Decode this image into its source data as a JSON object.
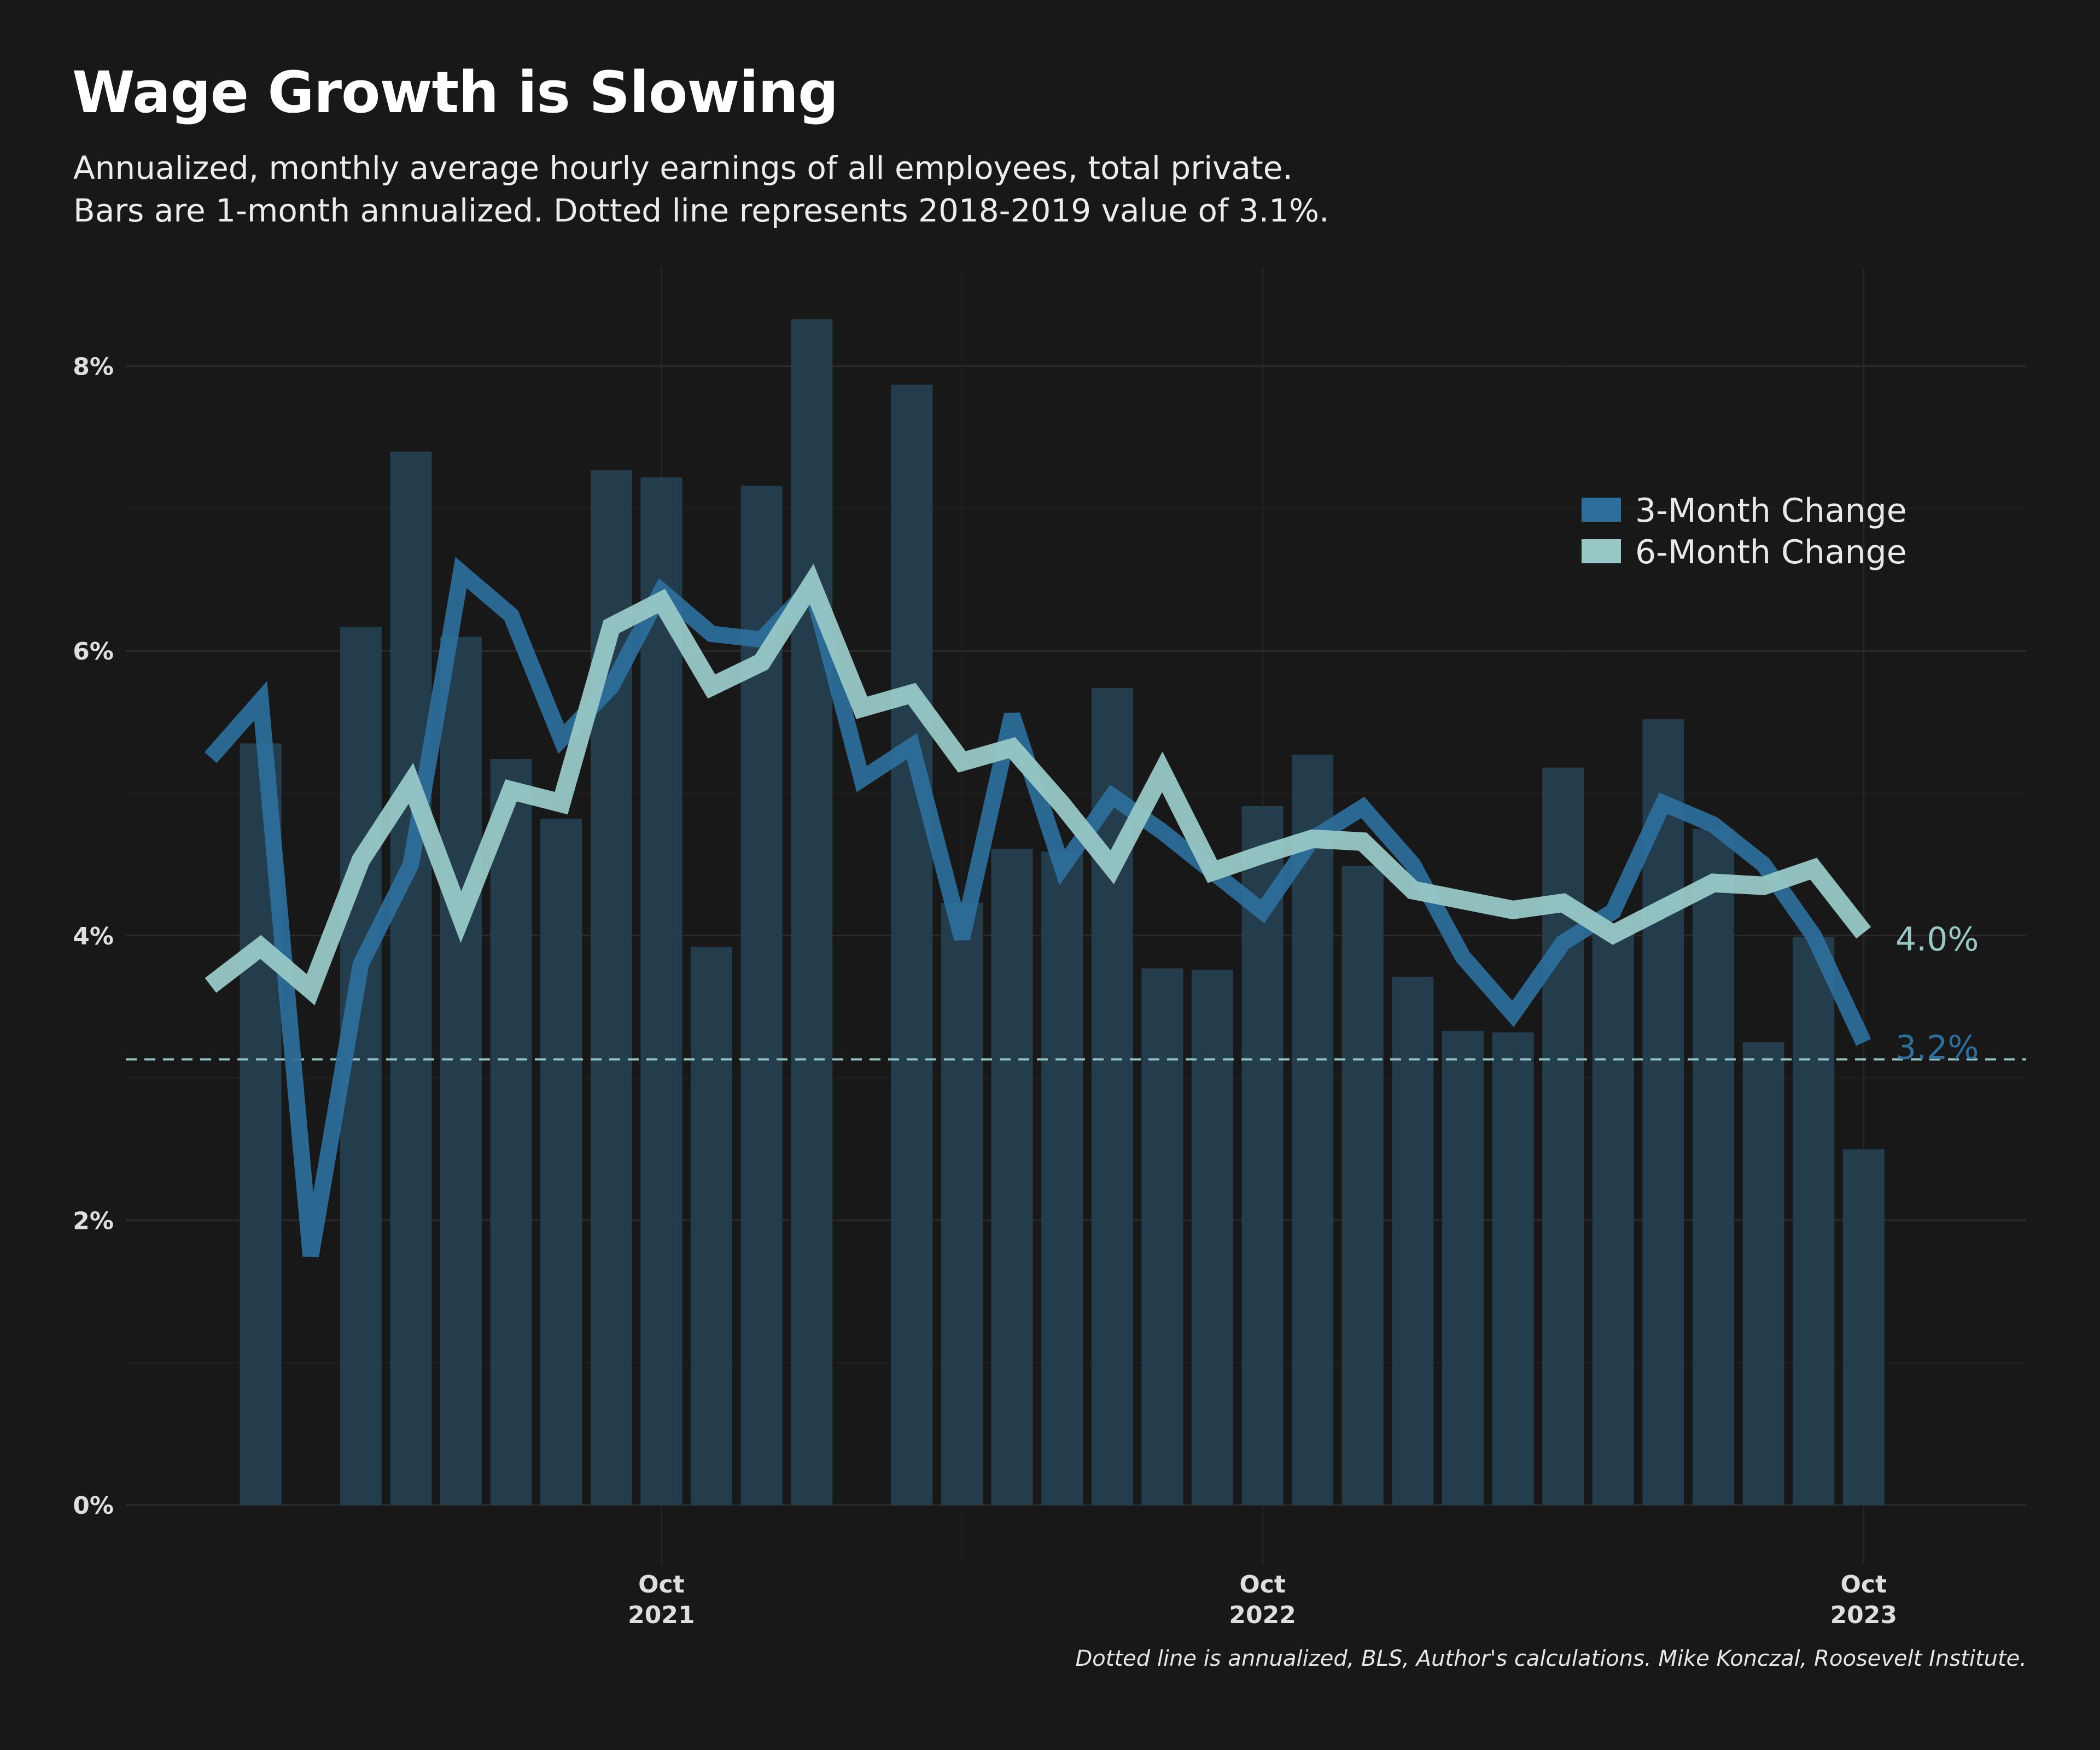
{
  "title": "Wage Growth is Slowing",
  "subtitle_lines": [
    "Annualized, monthly average hourly earnings of all employees, total private.",
    "Bars are 1-month annualized. Dotted line represents 2018-2019 value of 3.1%."
  ],
  "caption": "Dotted line is annualized, BLS, Author's calculations. Mike Konczal, Roosevelt Institute.",
  "colors": {
    "background": "#181818",
    "bars": "#233d4c",
    "three_month": "#2c6f9c",
    "six_month": "#98c8c6",
    "reference": "#8fc2c0",
    "grid": "#2b2b2b"
  },
  "chart_data": {
    "type": "bar",
    "title": "Wage Growth is Slowing",
    "xlabel": "",
    "ylabel": "",
    "ylim": [
      -0.3,
      8.6
    ],
    "y_ticks": [
      0,
      2,
      4,
      6,
      8
    ],
    "y_tick_labels": [
      "0%",
      "2%",
      "4%",
      "6%",
      "8%"
    ],
    "x_tick_labels": [
      {
        "date": "2021-10",
        "line1": "Oct",
        "line2": "2021"
      },
      {
        "date": "2022-10",
        "line1": "Oct",
        "line2": "2022"
      },
      {
        "date": "2023-10",
        "line1": "Oct",
        "line2": "2023"
      }
    ],
    "grid": true,
    "legend_position": "top-right",
    "categories": [
      "2021-01",
      "2021-02",
      "2021-03",
      "2021-04",
      "2021-05",
      "2021-06",
      "2021-07",
      "2021-08",
      "2021-09",
      "2021-10",
      "2021-11",
      "2021-12",
      "2022-01",
      "2022-02",
      "2022-03",
      "2022-04",
      "2022-05",
      "2022-06",
      "2022-07",
      "2022-08",
      "2022-09",
      "2022-10",
      "2022-11",
      "2022-12",
      "2023-01",
      "2023-02",
      "2023-03",
      "2023-04",
      "2023-05",
      "2023-06",
      "2023-07",
      "2023-08",
      "2023-09",
      "2023-10"
    ],
    "bars": {
      "name": "1-Month Annualized",
      "values": [
        null,
        5.35,
        null,
        6.17,
        7.4,
        6.1,
        5.24,
        4.82,
        7.27,
        7.22,
        3.92,
        7.16,
        8.33,
        null,
        7.87,
        4.23,
        4.61,
        4.59,
        5.74,
        3.77,
        3.76,
        4.91,
        5.27,
        4.49,
        3.71,
        3.33,
        3.32,
        5.18,
        4.03,
        5.52,
        4.75,
        3.25,
        3.99,
        2.5
      ]
    },
    "series": [
      {
        "name": "3-Month Change",
        "values": [
          5.25,
          5.65,
          1.75,
          3.8,
          4.5,
          6.55,
          6.25,
          5.38,
          5.75,
          6.42,
          6.12,
          6.08,
          6.45,
          5.1,
          5.33,
          3.98,
          5.55,
          4.48,
          4.98,
          4.73,
          4.45,
          4.17,
          4.68,
          4.9,
          4.5,
          3.85,
          3.45,
          3.95,
          4.17,
          4.93,
          4.78,
          4.5,
          4.0,
          3.25
        ]
      },
      {
        "name": "6-Month Change",
        "values": [
          3.65,
          3.92,
          3.62,
          4.53,
          5.07,
          4.13,
          5.02,
          4.93,
          6.17,
          6.35,
          5.75,
          5.92,
          6.47,
          5.6,
          5.7,
          5.22,
          5.32,
          4.92,
          4.48,
          5.15,
          4.45,
          4.57,
          4.68,
          4.66,
          4.32,
          4.25,
          4.18,
          4.23,
          4.01,
          4.19,
          4.37,
          4.35,
          4.47,
          4.02
        ]
      }
    ],
    "reference_line": {
      "value": 3.13
    },
    "end_labels": [
      "4.0%",
      "3.2%"
    ]
  }
}
